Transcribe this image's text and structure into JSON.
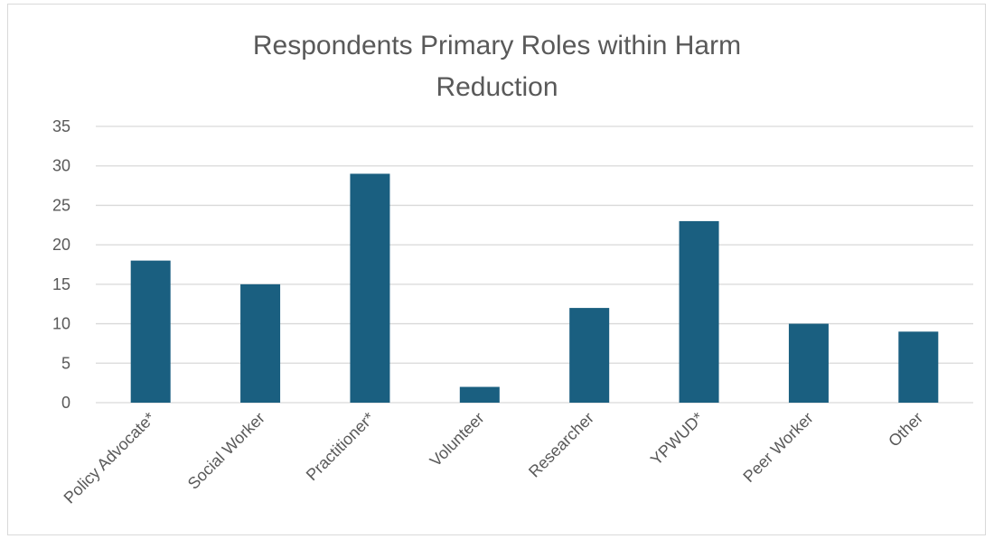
{
  "chart_data": {
    "type": "bar",
    "title": "Respondents Primary Roles within Harm Reduction",
    "title_lines": [
      "Respondents Primary Roles within Harm",
      "Reduction"
    ],
    "categories": [
      "Policy Advocate*",
      "Social Worker",
      "Practitioner*",
      "Volunteer",
      "Researcher",
      "YPWUD*",
      "Peer Worker",
      "Other"
    ],
    "values": [
      18,
      15,
      29,
      2,
      12,
      23,
      10,
      9
    ],
    "xlabel": "",
    "ylabel": "",
    "ylim": [
      0,
      35
    ],
    "yticks": [
      0,
      5,
      10,
      15,
      20,
      25,
      30,
      35
    ],
    "grid": true,
    "legend": "none",
    "bar_color": "#1a5f80",
    "grid_color": "#d9d9d9",
    "text_color": "#595959"
  }
}
